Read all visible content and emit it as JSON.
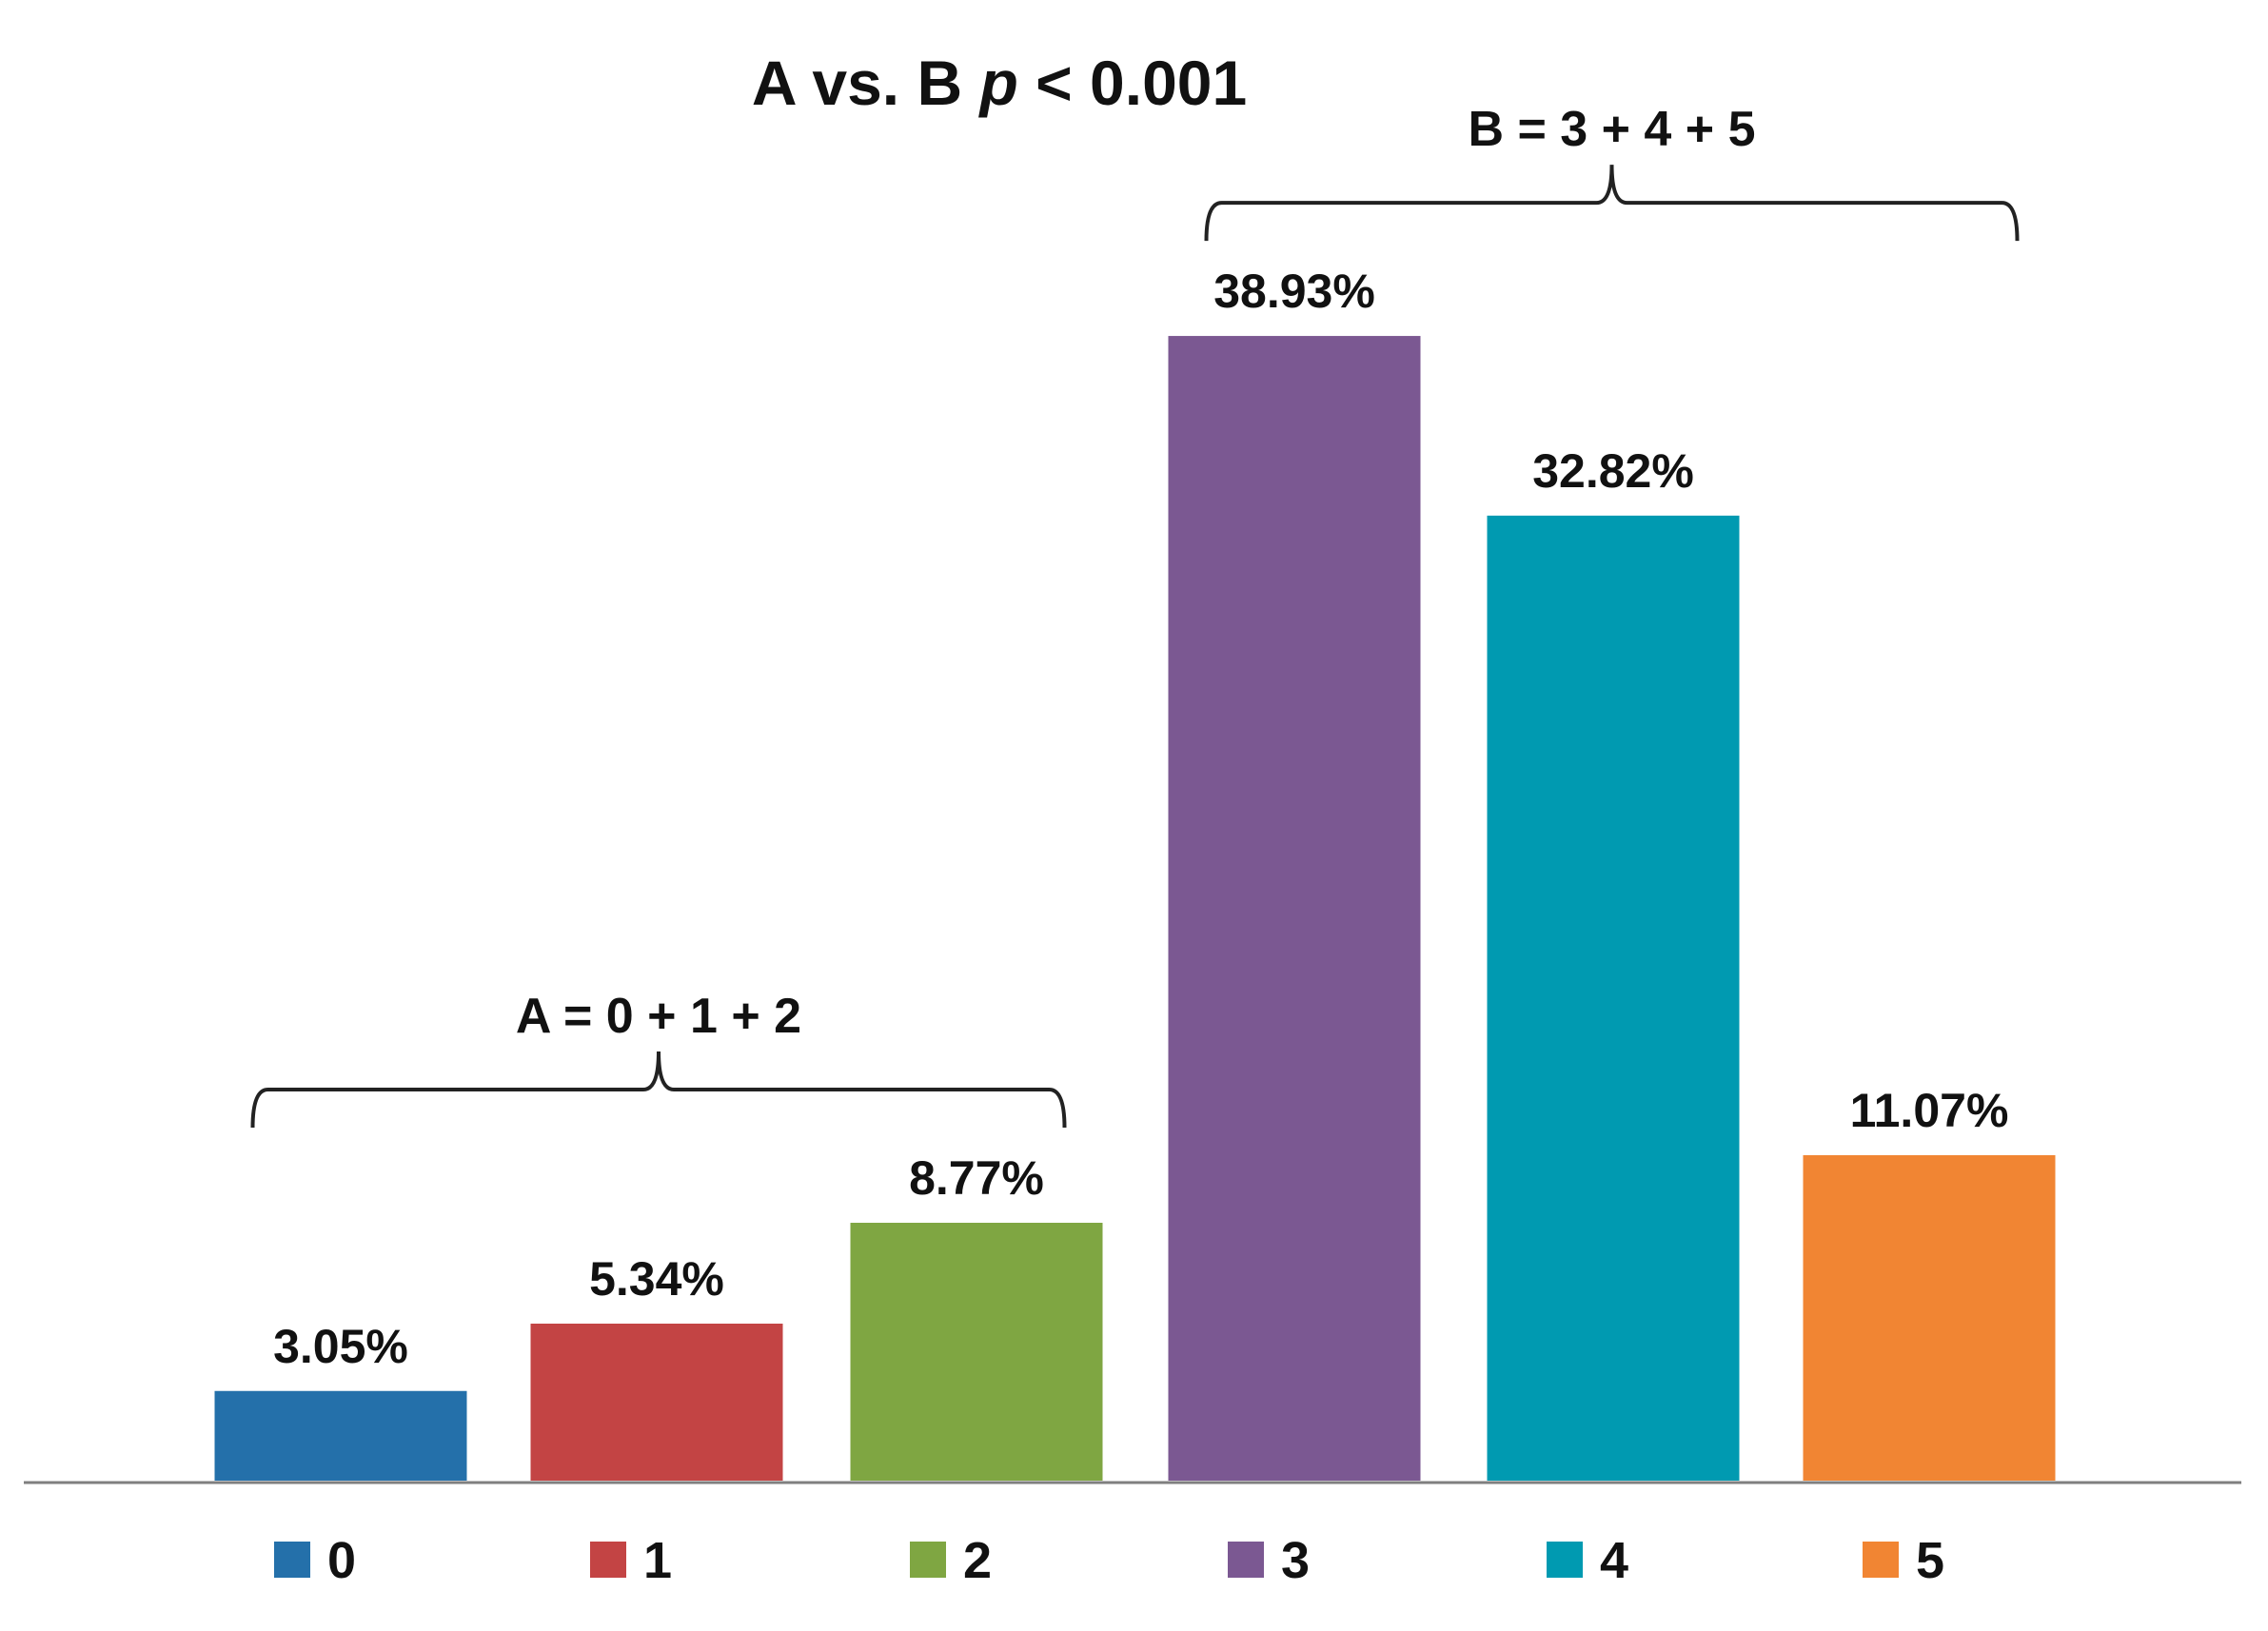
{
  "chart_data": {
    "type": "bar",
    "title": "A vs. B",
    "title_stat_prefix": "p",
    "title_stat_suffix": "< 0.001",
    "categories": [
      "0",
      "1",
      "2",
      "3",
      "4",
      "5"
    ],
    "values": [
      3.05,
      5.34,
      8.77,
      38.93,
      32.82,
      11.07
    ],
    "value_labels": [
      "3.05%",
      "5.34%",
      "8.77%",
      "38.93%",
      "32.82%",
      "11.07%"
    ],
    "colors": [
      "#2470AA",
      "#C34444",
      "#7FA642",
      "#7B5892",
      "#009AB1",
      "#F18533"
    ],
    "ylim": [
      0,
      40
    ],
    "xlabel": "",
    "ylabel": "",
    "grid": false,
    "legend": {
      "placement": "bottom",
      "entries": [
        "0",
        "1",
        "2",
        "3",
        "4",
        "5"
      ]
    },
    "groups": [
      {
        "label": "A = 0 + 1 + 2",
        "from": 0,
        "to": 2
      },
      {
        "label": "B = 3 + 4 + 5",
        "from": 3,
        "to": 5
      }
    ]
  }
}
